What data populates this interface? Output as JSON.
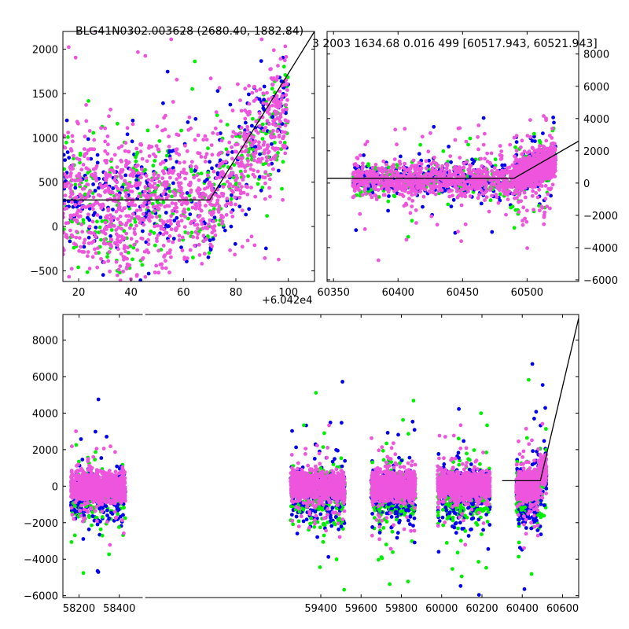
{
  "figure": {
    "title_left": "BLG41N0302.003628 (2680.40, 1882.84)",
    "title_right": "3 2003 1634.68 0.016 499 [60517.943, 60521.943]",
    "offset_label": "+6.042e4"
  },
  "colors": {
    "series_blue": "#0000ee",
    "series_green": "#00ee00",
    "series_pink": "#ee55dd",
    "model_line": "#000000"
  },
  "chart_data": [
    {
      "type": "scatter",
      "panel": "top-left zoom",
      "xlim": [
        14,
        110
      ],
      "ylim": [
        -620,
        2200
      ],
      "x_offset": 60420,
      "xticks": [
        20,
        40,
        60,
        80,
        100
      ],
      "xtick_labels": [
        "20",
        "40",
        "60",
        "80",
        "100"
      ],
      "yticks": [
        -500,
        0,
        500,
        1000,
        1500,
        2000
      ],
      "ytick_labels": [
        "−500",
        "0",
        "500",
        "1000",
        "1500",
        "2000"
      ],
      "yaxis_side": "left",
      "grid": false,
      "model_line": [
        [
          14,
          300
        ],
        [
          70,
          300
        ],
        [
          110,
          2200
        ]
      ],
      "series_colors": [
        "#0000ee",
        "#00ee00",
        "#ee55dd"
      ],
      "cloud": [
        {
          "x_from": 14,
          "x_to": 40,
          "y_center": 250,
          "y_spread": 550
        },
        {
          "x_from": 40,
          "x_to": 70,
          "y_center": 300,
          "y_spread": 520
        },
        {
          "x_from": 70,
          "x_to": 100,
          "y_center_from": 350,
          "y_center_to": 1400,
          "y_spread": 450
        }
      ],
      "point_count": 1800
    },
    {
      "type": "scatter",
      "panel": "top-right season",
      "xlim": [
        60345,
        60540
      ],
      "ylim": [
        -6100,
        9400
      ],
      "xticks": [
        60350,
        60400,
        60450,
        60500
      ],
      "xtick_labels": [
        "60350",
        "60400",
        "60450",
        "60500"
      ],
      "yticks": [
        -6000,
        -4000,
        -2000,
        0,
        2000,
        4000,
        6000,
        8000
      ],
      "ytick_labels": [
        "−6000",
        "−4000",
        "−2000",
        "0",
        "2000",
        "4000",
        "6000",
        "8000"
      ],
      "yaxis_side": "right",
      "grid": false,
      "model_line": [
        [
          60345,
          300
        ],
        [
          60490,
          300
        ],
        [
          60540,
          2600
        ]
      ],
      "series_colors": [
        "#0000ee",
        "#00ee00",
        "#ee55dd"
      ],
      "cloud": [
        {
          "x_from": 60365,
          "x_to": 60490,
          "y_center": 250,
          "y_spread": 700
        },
        {
          "x_from": 60490,
          "x_to": 60522,
          "y_center_from": 300,
          "y_center_to": 1500,
          "y_spread": 700
        }
      ],
      "point_count": 2600
    },
    {
      "type": "scatter",
      "panel": "bottom full light curve",
      "xlim": [
        58120,
        60680
      ],
      "ylim": [
        -6100,
        9400
      ],
      "xticks": [
        58200,
        58400,
        59400,
        59600,
        59800,
        60000,
        60200,
        60400,
        60600
      ],
      "xtick_labels": [
        "58200",
        "58400",
        "59400",
        "59600",
        "59800",
        "60000",
        "60200",
        "60400",
        "60600"
      ],
      "yticks": [
        -6000,
        -4000,
        -2000,
        0,
        2000,
        4000,
        6000,
        8000
      ],
      "ytick_labels": [
        "−6000",
        "−4000",
        "−2000",
        "0",
        "2000",
        "4000",
        "6000",
        "8000"
      ],
      "yaxis_side": "left",
      "grid": false,
      "model_line": [
        [
          60300,
          300
        ],
        [
          60490,
          300
        ],
        [
          60680,
          9200
        ]
      ],
      "series_colors": [
        "#0000ee",
        "#00ee00",
        "#ee55dd"
      ],
      "seasons": [
        {
          "x_from": 58160,
          "x_to": 58430
        },
        {
          "x_from": 59250,
          "x_to": 59520
        },
        {
          "x_from": 59650,
          "x_to": 59870
        },
        {
          "x_from": 59980,
          "x_to": 60240
        },
        {
          "x_from": 60370,
          "x_to": 60520
        }
      ],
      "axis_break_near": 58520,
      "point_count_per_season": 1300
    }
  ]
}
